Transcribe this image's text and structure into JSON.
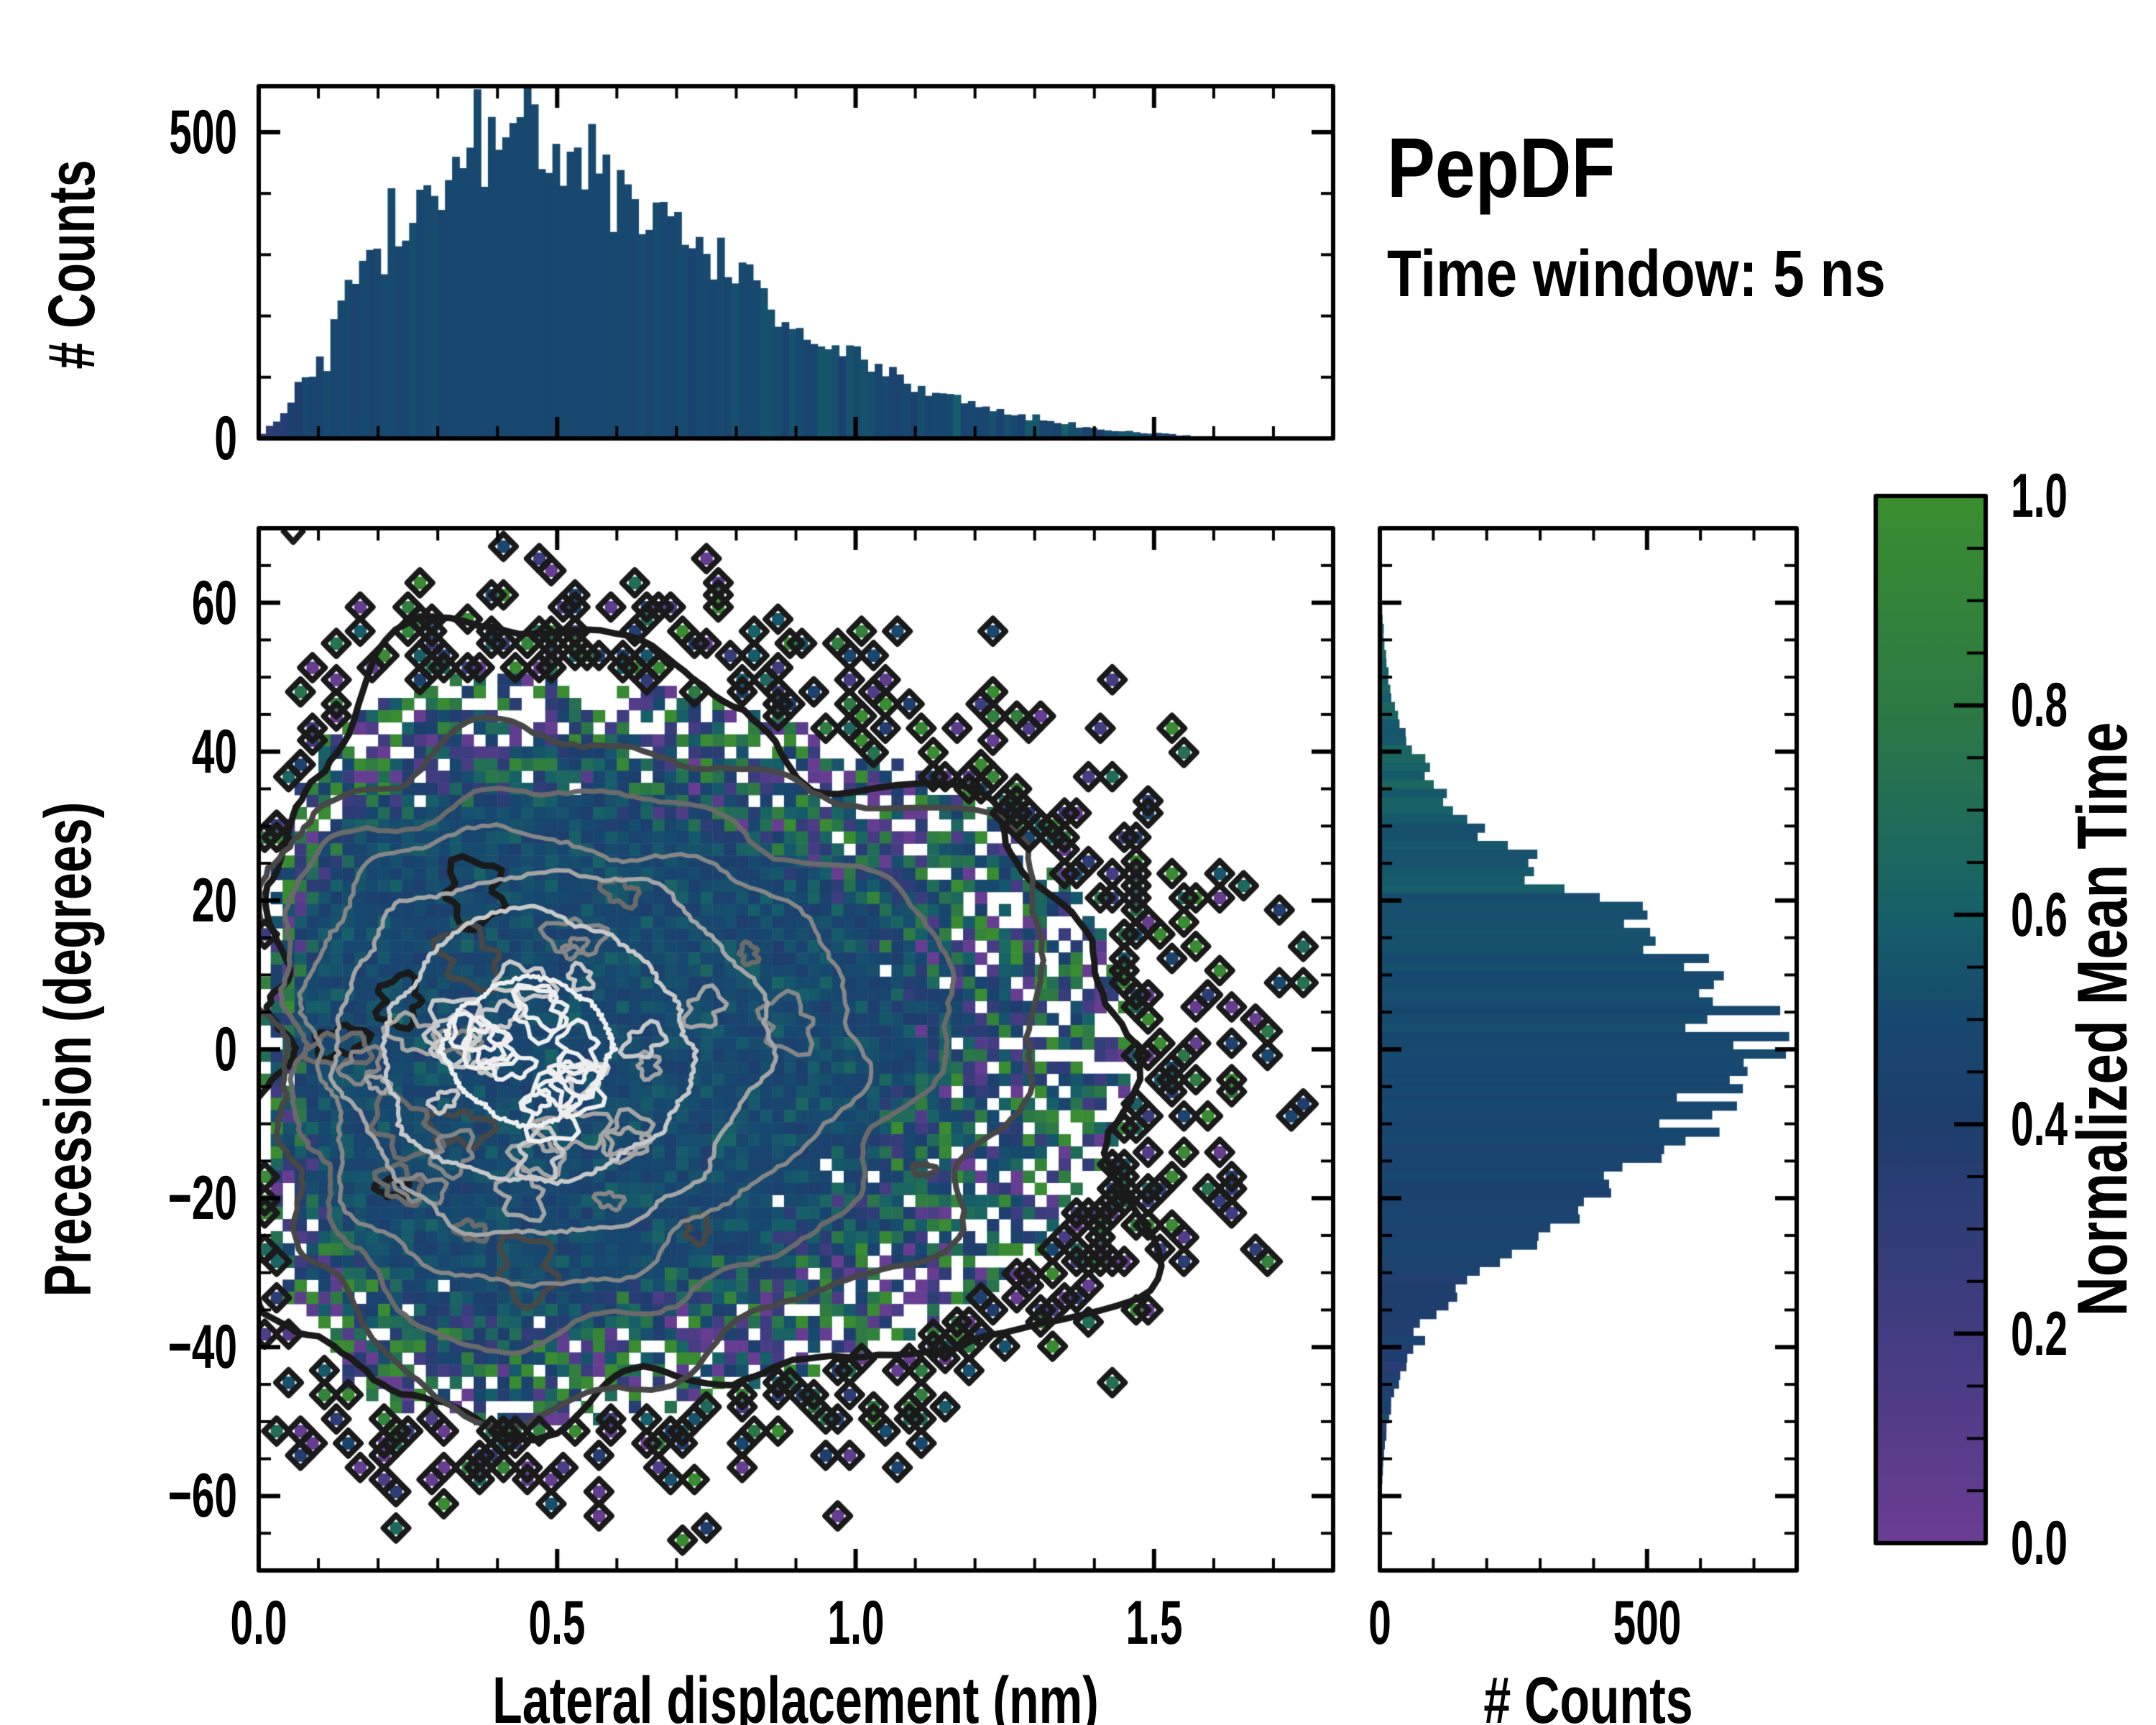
{
  "annotations": {
    "title": "PepDF",
    "subtitle": "Time window: 5 ns"
  },
  "chart_data": [
    {
      "id": "top_histogram",
      "type": "bar",
      "orientation": "vertical",
      "ylabel": "# Counts",
      "x_range": [
        0,
        1.8
      ],
      "y_range": [
        0,
        575
      ],
      "x_major_ticks": [
        0,
        0.5,
        1.0,
        1.5
      ],
      "x_minor_step": 0.1,
      "y_major_ticks": [
        0,
        500
      ],
      "y_tick_labels": [
        "0",
        "500"
      ],
      "y_minor_step": 100,
      "n_bins": 150,
      "bar_color": "#17486f",
      "envelope_x_nm": [
        0.0,
        0.05,
        0.1,
        0.15,
        0.2,
        0.25,
        0.3,
        0.35,
        0.4,
        0.45,
        0.5,
        0.55,
        0.6,
        0.65,
        0.7,
        0.75,
        0.8,
        0.85,
        0.9,
        0.95,
        1.0,
        1.05,
        1.1,
        1.15,
        1.2,
        1.25,
        1.3,
        1.35,
        1.4,
        1.45,
        1.5,
        1.55,
        1.6,
        1.65,
        1.7
      ],
      "envelope_counts": [
        2,
        55,
        140,
        225,
        300,
        365,
        420,
        462,
        492,
        502,
        490,
        462,
        425,
        385,
        340,
        298,
        258,
        222,
        188,
        158,
        132,
        108,
        88,
        70,
        55,
        42,
        32,
        24,
        17,
        12,
        8,
        5,
        3,
        2,
        1
      ]
    },
    {
      "id": "joint_distribution",
      "type": "heatmap",
      "xlabel": "Lateral displacement (nm)",
      "ylabel": "Precession (degrees)",
      "color_quantity": "Normalized Mean Time",
      "x_range": [
        0,
        1.8
      ],
      "y_range": [
        -70,
        70
      ],
      "x_major_ticks": [
        0,
        0.5,
        1.0,
        1.5
      ],
      "x_tick_labels": [
        "0.0",
        "0.5",
        "1.0",
        "1.5"
      ],
      "x_minor_step": 0.1,
      "y_major_ticks": [
        60,
        40,
        20,
        0,
        -20,
        -40,
        -60
      ],
      "y_tick_labels": [
        "60",
        "40",
        "20",
        "0",
        "−20",
        "−40",
        "−60"
      ],
      "y_minor_step": 5,
      "grid_cols": 90,
      "grid_rows": 86,
      "density_model": "product_of_marginal_envelopes",
      "peak_expected_count_per_bin": 28,
      "mean_time_center": 0.5,
      "mean_time_spread_dense": 0.05,
      "mean_time_spread_sparse": 0.4,
      "contour_level_fractions": [
        0.85,
        0.62,
        0.42,
        0.26,
        0.14,
        0.055,
        0.02
      ],
      "contour_colors": [
        "#eeeeee",
        "#c8c8c8",
        "#a4a4a4",
        "#868686",
        "#6a6a6a",
        "#474747",
        "#1a1a1a"
      ],
      "contour_center": [
        0.46,
        -1
      ]
    },
    {
      "id": "right_histogram",
      "type": "bar",
      "orientation": "horizontal",
      "xlabel": "# Counts",
      "x_range": [
        0,
        780
      ],
      "y_range": [
        -70,
        70
      ],
      "x_major_ticks": [
        0,
        500
      ],
      "x_tick_labels": [
        "0",
        "500"
      ],
      "x_minor_step": 100,
      "y_major_ticks": [
        60,
        40,
        20,
        0,
        -20,
        -40,
        -60
      ],
      "y_minor_step": 5,
      "n_bins": 120,
      "bar_color": "#17486f",
      "envelope_deg": [
        -70,
        -65,
        -60,
        -55,
        -50,
        -45,
        -40,
        -35,
        -30,
        -25,
        -20,
        -15,
        -10,
        -5,
        0,
        5,
        10,
        15,
        20,
        25,
        30,
        35,
        40,
        45,
        50,
        55,
        60,
        65,
        70
      ],
      "envelope_counts": [
        0,
        1,
        3,
        7,
        16,
        34,
        66,
        118,
        190,
        288,
        398,
        505,
        600,
        655,
        700,
        665,
        590,
        500,
        395,
        282,
        185,
        112,
        62,
        32,
        16,
        8,
        4,
        2,
        1
      ]
    },
    {
      "id": "colorbar",
      "type": "colorbar",
      "label": "Normalized Mean Time",
      "range": [
        0,
        1
      ],
      "major_ticks": [
        0,
        0.2,
        0.4,
        0.6,
        0.8,
        1.0
      ],
      "tick_labels": [
        "0.0",
        "0.2",
        "0.4",
        "0.6",
        "0.8",
        "1.0"
      ],
      "minor_step": 0.05,
      "colormap_stops_t": [
        0,
        0.2,
        0.4,
        0.5,
        0.6,
        0.8,
        1.0
      ],
      "colormap_stops_color": [
        "#6b3d94",
        "#433c82",
        "#1e3e6e",
        "#17486f",
        "#166069",
        "#2d7a44",
        "#3a8e2f"
      ]
    }
  ],
  "styles": {
    "spine_color": "#000000",
    "background": "#ffffff"
  }
}
